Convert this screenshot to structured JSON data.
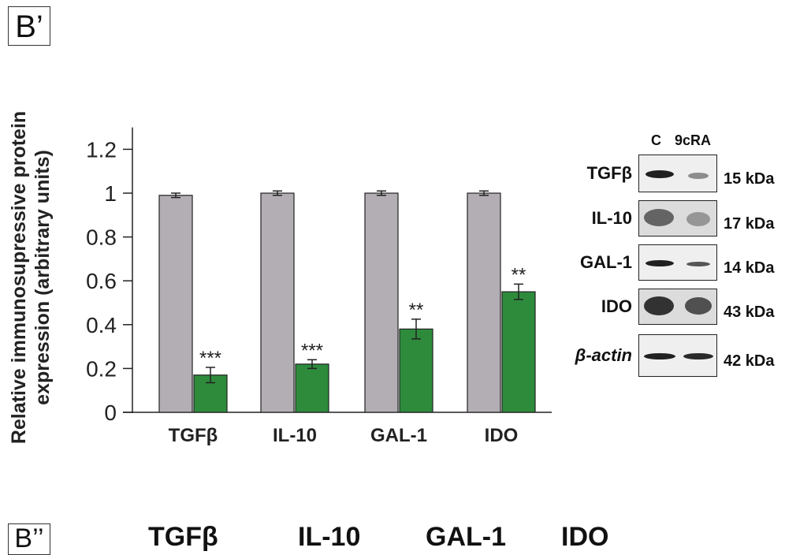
{
  "panel_label": "B’",
  "chart_data": {
    "type": "bar",
    "ylabel_line1": "Relative immunosupressive protein",
    "ylabel_line2": "expression (arbitrary units)",
    "ylim": [
      0,
      1.3
    ],
    "yticks": [
      "0",
      "0.2",
      "0.4",
      "0.6",
      "0.8",
      "1",
      "1.2"
    ],
    "ytick_values": [
      0,
      0.2,
      0.4,
      0.6,
      0.8,
      1.0,
      1.2
    ],
    "categories": [
      "TGFβ",
      "IL-10",
      "GAL-1",
      "IDO"
    ],
    "series": [
      {
        "values": [
          0.99,
          1.0,
          1.0,
          1.0
        ],
        "errors": [
          0.01,
          0.01,
          0.01,
          0.01
        ],
        "color": "#b3aeb4"
      },
      {
        "values": [
          0.17,
          0.22,
          0.38,
          0.55
        ],
        "errors": [
          0.035,
          0.02,
          0.045,
          0.035
        ],
        "color": "#2e8b3c"
      }
    ],
    "significance": [
      "***",
      "***",
      "**",
      "**"
    ],
    "grid": false
  },
  "blot": {
    "lane_labels": [
      "C",
      "9cRA"
    ],
    "rows": [
      {
        "label": "TGFβ",
        "kda": "15 kDa"
      },
      {
        "label": "IL-10",
        "kda": "17 kDa"
      },
      {
        "label": "GAL-1",
        "kda": "14 kDa"
      },
      {
        "label": "IDO",
        "kda": "43 kDa"
      },
      {
        "label": "β-actin",
        "kda": "42 kDa"
      }
    ]
  },
  "bottom_panel": {
    "label": "B’’",
    "headings": [
      "TGFβ",
      "IL-10",
      "GAL-1",
      "IDO"
    ]
  }
}
